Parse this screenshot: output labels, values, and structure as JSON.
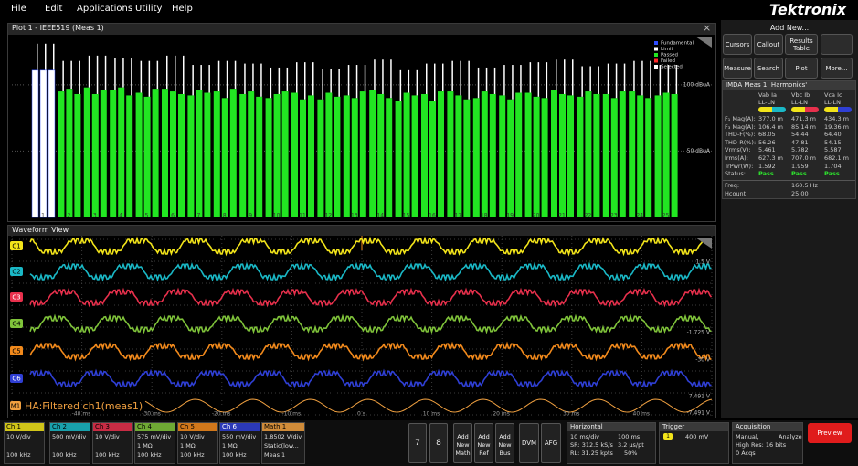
{
  "menu": [
    "File",
    "Edit",
    "Applications",
    "Utility",
    "Help"
  ],
  "brand": "Tektronix",
  "plot": {
    "title": "Plot 1 - IEEE519 (Meas 1)",
    "legend": [
      {
        "name": "Fundamental",
        "color": "#2f4dff"
      },
      {
        "name": "Limit",
        "color": "#ffffff"
      },
      {
        "name": "Passed",
        "color": "#22e622"
      },
      {
        "name": "Failed",
        "color": "#ff2a2a"
      },
      {
        "name": "Selected",
        "color": "#ffffff"
      }
    ],
    "ylim": [
      0,
      135
    ],
    "yticks": [
      {
        "value": 100,
        "label": "100 dBuA"
      },
      {
        "value": 50,
        "label": "50 dBuA"
      }
    ],
    "harmonics": [
      "1",
      "2",
      "3",
      "4",
      "5",
      "6",
      "7",
      "8",
      "9",
      "10",
      "11",
      "12",
      "13",
      "14",
      "15",
      "16",
      "17",
      "18",
      "19",
      "20",
      "21",
      "22",
      "23",
      "24",
      "25"
    ],
    "phases": [
      [
        111,
        95,
        98,
        96,
        94,
        97,
        92,
        95,
        93,
        90,
        94,
        89,
        92,
        96,
        88,
        93,
        95,
        90,
        92,
        94,
        96,
        91,
        93,
        95,
        92
      ],
      [
        111,
        97,
        93,
        98,
        91,
        95,
        96,
        90,
        95,
        93,
        89,
        94,
        90,
        93,
        94,
        88,
        92,
        95,
        89,
        91,
        93,
        95,
        90,
        92,
        94
      ],
      [
        111,
        93,
        96,
        92,
        97,
        93,
        94,
        97,
        91,
        95,
        92,
        91,
        95,
        90,
        92,
        95,
        89,
        93,
        94,
        90,
        92,
        93,
        95,
        90,
        93
      ]
    ],
    "limits": [
      131,
      118,
      122,
      120,
      118,
      122,
      115,
      118,
      116,
      113,
      117,
      112,
      115,
      119,
      111,
      116,
      118,
      113,
      115,
      117,
      119,
      114,
      116,
      118,
      115
    ],
    "selected": 0
  },
  "waveform": {
    "title": "Waveform View",
    "channels": [
      {
        "label": "C1",
        "color": "#f2e41a"
      },
      {
        "label": "C2",
        "color": "#1ab8c6"
      },
      {
        "label": "C3",
        "color": "#e8304c"
      },
      {
        "label": "C4",
        "color": "#7fc33a"
      },
      {
        "label": "C5",
        "color": "#f28a1c"
      },
      {
        "label": "C6",
        "color": "#2f3fd4"
      }
    ],
    "math_label": "M1",
    "math_name": "HA:Filtered ch1(meas1)",
    "math_color": "#f0a040",
    "scale_labels": [
      "1.5 V",
      "-1.725 V",
      "-30 V",
      "7.491 V",
      "-7.491 V"
    ],
    "time_labels": [
      "-40 ms",
      "-30 ms",
      "-20 ms",
      "-10 ms",
      "0 s",
      "10 ms",
      "20 ms",
      "30 ms",
      "40 ms"
    ]
  },
  "add_new": {
    "title": "Add New...",
    "buttons": [
      "Cursors",
      "Callout",
      "Results Table",
      "Measure",
      "Search",
      "Plot",
      "More..."
    ]
  },
  "results": {
    "title": "IMDA Meas 1: Harmonics'",
    "columns": [
      [
        "Vab Ia",
        "LL-LN"
      ],
      [
        "Vbc Ib",
        "LL-LN"
      ],
      [
        "Vca Ic",
        "LL-LN"
      ]
    ],
    "rows": [
      [
        "F₁ Mag(A):",
        "377.0 m",
        "471.3 m",
        "434.3 m"
      ],
      [
        "F₃ Mag(A):",
        "106.4 m",
        "85.14 m",
        "19.36 m"
      ],
      [
        "THD-F(%):",
        "68.05",
        "54.44",
        "64.40"
      ],
      [
        "THD-R(%):",
        "56.26",
        "47.81",
        "54.15"
      ],
      [
        "Vrms(V):",
        "5.461",
        "5.782",
        "5.587"
      ],
      [
        "Irms(A):",
        "627.3 m",
        "707.0 m",
        "682.1 m"
      ],
      [
        "TrPwr(W):",
        "1.592",
        "1.959",
        "1.704"
      ],
      [
        "Status:",
        "Pass",
        "Pass",
        "Pass"
      ]
    ],
    "footer": [
      [
        "Freq:",
        "160.5 Hz"
      ],
      [
        "Hcount:",
        "25.00"
      ]
    ]
  },
  "bottom": {
    "channels": [
      {
        "name": "Ch 1",
        "lines": [
          "10 V/div",
          "",
          "100 kHz"
        ]
      },
      {
        "name": "Ch 2",
        "lines": [
          "500 mV/div",
          "",
          "100 kHz"
        ]
      },
      {
        "name": "Ch 3",
        "lines": [
          "10 V/div",
          "",
          "100 kHz"
        ]
      },
      {
        "name": "Ch 4",
        "lines": [
          "575 mV/div",
          "1 MΩ",
          "100 kHz"
        ]
      },
      {
        "name": "Ch 5",
        "lines": [
          "10 V/div",
          "1 MΩ",
          "100 kHz"
        ]
      },
      {
        "name": "Ch 6",
        "lines": [
          "550 mV/div",
          "1 MΩ",
          "100 kHz"
        ]
      },
      {
        "name": "Math 1",
        "lines": [
          "1.8502 V/div",
          "Static(low...",
          "Meas 1"
        ]
      }
    ],
    "refs": [
      "7",
      "8"
    ],
    "add_buttons": [
      [
        "Add",
        "New",
        "Math"
      ],
      [
        "Add",
        "New",
        "Ref"
      ],
      [
        "Add",
        "New",
        "Bus"
      ]
    ],
    "tools": [
      "DVM",
      "AFG"
    ],
    "horizontal": {
      "title": "Horizontal",
      "lines": [
        "10 ms/div",
        "100 ms",
        "SR: 312.5 kS/s",
        "3.2 µs/pt",
        "RL: 31.25 kpts",
        "50%"
      ]
    },
    "trigger": {
      "title": "Trigger",
      "source": "1",
      "lines": [
        "400 mV"
      ]
    },
    "acquisition": {
      "title": "Acquisition",
      "lines": [
        "Manual,",
        "Analyze",
        "High Res: 16 bits",
        "0 Acqs"
      ]
    },
    "preview": "Preview"
  }
}
